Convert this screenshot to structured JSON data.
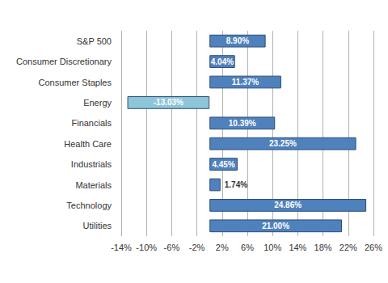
{
  "chart_data": {
    "type": "bar",
    "orientation": "horizontal",
    "categories": [
      "S&P 500",
      "Consumer Discretionary",
      "Consumer Staples",
      "Energy",
      "Financials",
      "Health Care",
      "Industrials",
      "Materials",
      "Technology",
      "Utilities"
    ],
    "values": [
      8.9,
      4.04,
      11.37,
      -13.03,
      10.39,
      23.25,
      4.45,
      1.74,
      24.86,
      21.0
    ],
    "value_labels": [
      "8.90%",
      "4.04%",
      "11.37%",
      "-13.03%",
      "10.39%",
      "23.25%",
      "4.45%",
      "1.74%",
      "24.86%",
      "21.00%"
    ],
    "colors": [
      "#4f81bd",
      "#4f81bd",
      "#4f81bd",
      "#8ec5d9",
      "#4f81bd",
      "#4f81bd",
      "#4f81bd",
      "#4f81bd",
      "#4f81bd",
      "#4f81bd"
    ],
    "xlim": [
      -14,
      26
    ],
    "xticks": [
      {
        "value": -14,
        "label": "-14%"
      },
      {
        "value": -10,
        "label": "-10%"
      },
      {
        "value": -6,
        "label": "-6%"
      },
      {
        "value": -2,
        "label": "-2%"
      },
      {
        "value": 2,
        "label": "2%"
      },
      {
        "value": 6,
        "label": "6%"
      },
      {
        "value": 10,
        "label": "10%"
      },
      {
        "value": 14,
        "label": "14%"
      },
      {
        "value": 18,
        "label": "18%"
      },
      {
        "value": 22,
        "label": "22%"
      },
      {
        "value": 26,
        "label": "26%"
      }
    ],
    "grid": true,
    "data_labels": true
  }
}
